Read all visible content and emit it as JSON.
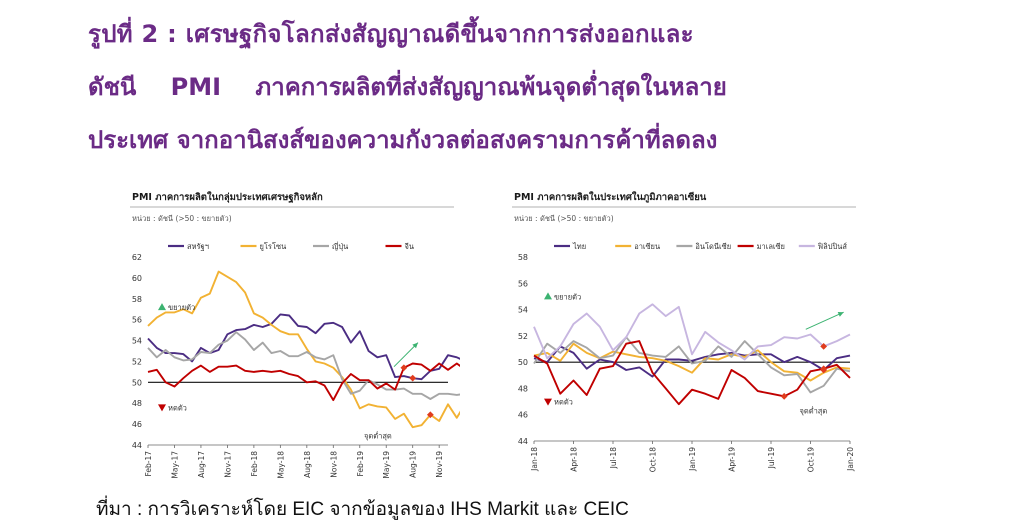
{
  "figure": {
    "title_line1": "รูปที่ 2 : เศรษฐกิจโลกส่งสัญญาณดีขึ้นจากการส่งออกและ",
    "title_line2": "ดัชนี PMI ภาคการผลิตที่ส่งสัญญาณพ้นจุดต่ำสุดในหลาย",
    "title_line3": "ประเทศ จากอานิสงส์ของความกังวลต่อสงครามการค้าที่ลดลง",
    "source": "ที่มา : การวิเคราะห์โดย EIC จากข้อมูลของ IHS Markit และ CEIC"
  },
  "colors": {
    "title": "#6b2b86",
    "us": "#4b2d83",
    "euro": "#f2b233",
    "japan": "#a6a6a6",
    "china": "#c00000",
    "thai": "#4b2d83",
    "asean": "#f2b233",
    "indo": "#a6a6a6",
    "malay": "#c00000",
    "phil": "#c7b6e0",
    "up": "#3cb371",
    "down": "#c00000",
    "marker": "#e03c1e"
  },
  "chart_data": [
    {
      "type": "line",
      "title": "PMI ภาคการผลิตในกลุ่มประเทศเศรษฐกิจหลัก",
      "unit_note": "หน่วย : ดัชนี (>50 : ขยายตัว)",
      "x_ticks": [
        "Feb-17",
        "May-17",
        "Aug-17",
        "Nov-17",
        "Feb-18",
        "May-18",
        "Aug-18",
        "Nov-18",
        "Feb-19",
        "May-19",
        "Aug-19",
        "Nov-19"
      ],
      "x_start": "2017-02",
      "x_end": "2019-12",
      "ylim": [
        44,
        62
      ],
      "y_ticks": [
        "44",
        "46",
        "48",
        "50",
        "52",
        "54",
        "56",
        "58",
        "60",
        "62"
      ],
      "reference_line": 50,
      "series": [
        {
          "name": "สหรัฐฯ",
          "color_key": "us",
          "values": [
            54.2,
            53.3,
            52.8,
            52.8,
            52.7,
            52.0,
            53.3,
            52.8,
            53.1,
            54.6,
            55.0,
            55.1,
            55.5,
            55.3,
            55.6,
            56.5,
            56.4,
            55.4,
            55.3,
            54.7,
            55.6,
            55.7,
            55.3,
            53.8,
            54.9,
            53.0,
            52.4,
            52.6,
            50.5,
            50.6,
            50.4,
            50.3,
            51.1,
            51.3,
            52.6,
            52.4,
            52.0
          ]
        },
        {
          "name": "ยูโรโซน",
          "color_key": "euro",
          "values": [
            55.4,
            56.2,
            56.7,
            56.7,
            57.0,
            56.6,
            58.1,
            58.5,
            60.6,
            60.1,
            59.6,
            58.6,
            56.6,
            56.2,
            55.5,
            54.9,
            54.6,
            54.6,
            53.2,
            52.0,
            51.8,
            51.4,
            50.5,
            49.3,
            47.5,
            47.9,
            47.7,
            47.6,
            46.5,
            47.0,
            45.7,
            45.9,
            46.9,
            46.3,
            47.9,
            46.6,
            48.0
          ]
        },
        {
          "name": "ญี่ปุ่น",
          "color_key": "japan",
          "values": [
            53.3,
            52.4,
            53.1,
            52.4,
            52.1,
            52.2,
            52.9,
            52.8,
            53.6,
            54.0,
            54.8,
            54.1,
            53.1,
            53.8,
            52.8,
            53.0,
            52.5,
            52.5,
            52.9,
            52.4,
            52.2,
            52.6,
            50.3,
            48.9,
            49.2,
            50.2,
            49.8,
            49.3,
            49.3,
            49.4,
            48.9,
            48.9,
            48.4,
            48.9,
            48.9,
            48.8,
            48.9
          ]
        },
        {
          "name": "จีน",
          "color_key": "china",
          "values": [
            51.0,
            51.2,
            50.0,
            49.6,
            50.4,
            51.1,
            51.6,
            51.0,
            51.5,
            51.5,
            51.6,
            51.1,
            51.0,
            51.1,
            51.0,
            51.1,
            50.8,
            50.6,
            50.0,
            50.1,
            49.7,
            48.3,
            49.9,
            50.8,
            50.2,
            50.2,
            49.4,
            49.9,
            49.3,
            51.4,
            51.8,
            51.7,
            51.1,
            51.8,
            51.2,
            51.8,
            51.2
          ]
        }
      ],
      "annotations": [
        "ขยายตัว",
        "หดตัว",
        "จุดต่ำสุด"
      ]
    },
    {
      "type": "line",
      "title": "PMI ภาคการผลิตในประเทศในภูมิภาคอาเซียน",
      "unit_note": "หน่วย : ดัชนี (>50 : ขยายตัว)",
      "x_ticks": [
        "Jan-18",
        "Apr-18",
        "Jul-18",
        "Oct-18",
        "Jan-19",
        "Apr-19",
        "Jul-19",
        "Oct-19",
        "Jan-20"
      ],
      "x_start": "2018-01",
      "x_end": "2020-01",
      "ylim": [
        44,
        58
      ],
      "y_ticks": [
        "44",
        "46",
        "48",
        "50",
        "52",
        "54",
        "56",
        "58"
      ],
      "reference_line": 50,
      "series": [
        {
          "name": "ไทย",
          "color_key": "thai",
          "values": [
            50.3,
            50.0,
            51.2,
            50.7,
            49.5,
            50.2,
            50.0,
            49.4,
            49.6,
            48.9,
            50.2,
            50.2,
            50.1,
            50.4,
            50.6,
            50.7,
            50.5,
            50.6,
            50.6,
            50.0,
            50.4,
            50.0,
            49.4,
            50.3,
            50.5
          ]
        },
        {
          "name": "อาเซียน",
          "color_key": "asean",
          "values": [
            50.5,
            50.7,
            50.1,
            51.4,
            50.7,
            50.3,
            50.8,
            50.6,
            50.4,
            50.3,
            50.1,
            49.7,
            49.2,
            50.3,
            50.2,
            50.6,
            50.4,
            50.9,
            50.0,
            49.3,
            49.2,
            48.6,
            49.2,
            49.6,
            49.5
          ]
        },
        {
          "name": "อินโดนีเซีย",
          "color_key": "indo",
          "values": [
            49.9,
            51.4,
            50.7,
            51.6,
            51.1,
            50.3,
            50.5,
            51.9,
            50.7,
            50.5,
            50.4,
            51.2,
            49.9,
            50.1,
            51.2,
            50.4,
            51.6,
            50.6,
            49.6,
            49.0,
            49.1,
            47.7,
            48.2,
            49.5,
            49.3
          ]
        },
        {
          "name": "มาเลเซีย",
          "color_key": "malay",
          "values": [
            50.5,
            49.9,
            47.6,
            48.6,
            47.5,
            49.5,
            49.7,
            51.4,
            51.6,
            49.2,
            48.0,
            46.8,
            47.9,
            47.6,
            47.2,
            49.4,
            48.8,
            47.8,
            47.6,
            47.4,
            47.9,
            49.3,
            49.5,
            49.8,
            48.8
          ]
        },
        {
          "name": "ฟิลิปปินส์",
          "color_key": "phil",
          "values": [
            52.7,
            50.3,
            51.2,
            52.9,
            53.7,
            52.7,
            50.9,
            51.9,
            53.7,
            54.4,
            53.5,
            54.2,
            50.6,
            52.3,
            51.5,
            50.9,
            50.2,
            51.2,
            51.3,
            51.9,
            51.8,
            52.1,
            51.2,
            51.6,
            52.1
          ]
        }
      ],
      "annotations": [
        "ขยายตัว",
        "หดตัว",
        "จุดต่ำสุด"
      ]
    }
  ]
}
